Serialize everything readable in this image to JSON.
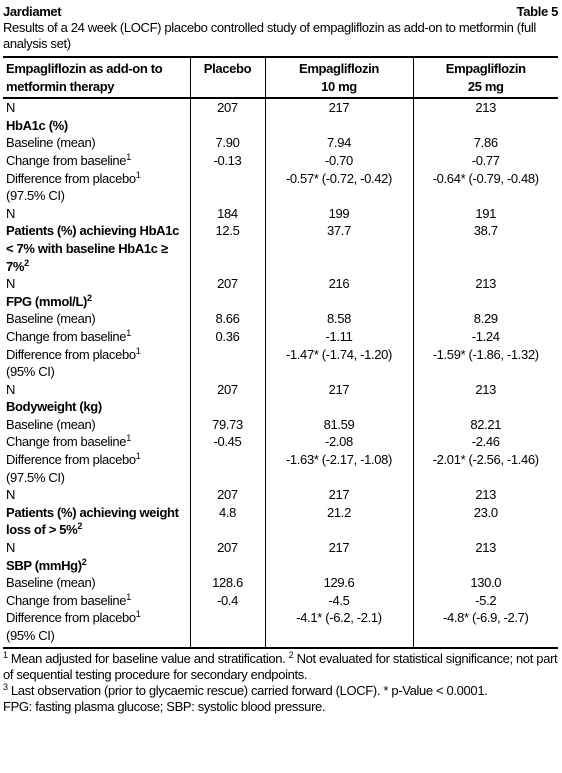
{
  "header": {
    "brand": "Jardiamet",
    "table_no": "Table 5",
    "caption": "Results of a 24 week (LOCF) placebo controlled study of empagliflozin as add-on to metformin (full analysis set)"
  },
  "table": {
    "columns": [
      [
        "Empagliflozin as add-on to metformin therapy"
      ],
      [
        "Placebo"
      ],
      [
        "Empagliflozin",
        "10 mg"
      ],
      [
        "Empagliflozin",
        "25 mg"
      ]
    ],
    "rows": [
      {
        "label": "N",
        "cells": [
          "207",
          "217",
          "213"
        ]
      },
      {
        "label": "HbA1c (%)",
        "bold": true
      },
      {
        "label": "Baseline (mean)",
        "cells": [
          "7.90",
          "7.94",
          "7.86"
        ]
      },
      {
        "label": "Change from baseline",
        "sup": "1",
        "cells": [
          "-0.13",
          "-0.70",
          "-0.77"
        ]
      },
      {
        "label": "Difference from placebo",
        "sup": "1",
        "label2": "(97.5% CI)",
        "cells": [
          null,
          "-0.57* (-0.72, -0.42)",
          "-0.64* (-0.79, -0.48)"
        ]
      },
      {
        "label": "N",
        "cells": [
          "184",
          "199",
          "191"
        ]
      },
      {
        "label": "Patients (%) achieving HbA1c < 7% with baseline HbA1c ≥ 7%",
        "sup": "2",
        "bold": true,
        "cells": [
          "12.5",
          "37.7",
          "38.7"
        ]
      },
      {
        "label": "N",
        "cells": [
          "207",
          "216",
          "213"
        ]
      },
      {
        "label": "FPG (mmol/L)",
        "sup": "2",
        "bold": true
      },
      {
        "label": "Baseline (mean)",
        "cells": [
          "8.66",
          "8.58",
          "8.29"
        ]
      },
      {
        "label": "Change from baseline",
        "sup": "1",
        "cells": [
          "0.36",
          "-1.11",
          "-1.24"
        ]
      },
      {
        "label": "Difference from placebo",
        "sup": "1",
        "label2": "(95% CI)",
        "cells": [
          null,
          "-1.47* (-1.74, -1.20)",
          "-1.59* (-1.86, -1.32)"
        ]
      },
      {
        "label": "N",
        "cells": [
          "207",
          "217",
          "213"
        ]
      },
      {
        "label": "Bodyweight (kg)",
        "bold": true
      },
      {
        "label": "Baseline (mean)",
        "cells": [
          "79.73",
          "81.59",
          "82.21"
        ]
      },
      {
        "label": "Change from baseline",
        "sup": "1",
        "cells": [
          "-0.45",
          "-2.08",
          "-2.46"
        ]
      },
      {
        "label": "Difference from placebo",
        "sup": "1",
        "label2": "(97.5% CI)",
        "cells": [
          null,
          "-1.63* (-2.17, -1.08)",
          "-2.01* (-2.56, -1.46)"
        ]
      },
      {
        "label": "N",
        "cells": [
          "207",
          "217",
          "213"
        ]
      },
      {
        "label": "Patients (%) achieving weight loss of > 5%",
        "sup": "2",
        "bold": true,
        "cells": [
          "4.8",
          "21.2",
          "23.0"
        ]
      },
      {
        "label": "N",
        "cells": [
          "207",
          "217",
          "213"
        ]
      },
      {
        "label": "SBP (mmHg)",
        "sup": "2",
        "bold": true
      },
      {
        "label": "Baseline (mean)",
        "cells": [
          "128.6",
          "129.6",
          "130.0"
        ]
      },
      {
        "label": "Change from baseline",
        "sup": "1",
        "cells": [
          "-0.4",
          "-4.5",
          "-5.2"
        ]
      },
      {
        "label": "Difference from placebo",
        "sup": "1",
        "label2": "(95% CI)",
        "cells": [
          null,
          "-4.1* (-6.2, -2.1)",
          "-4.8* (-6.9, -2.7)"
        ]
      }
    ]
  },
  "footnotes": [
    [
      {
        "sup": "1",
        "text": " Mean adjusted for baseline value and stratification. "
      },
      {
        "sup": "2",
        "text": " Not evaluated for statistical significance; not part of sequential testing procedure for secondary endpoints."
      }
    ],
    [
      {
        "sup": "3",
        "text": " Last observation (prior to glycaemic rescue) carried forward (LOCF). * p-Value < 0.0001."
      }
    ],
    [
      {
        "text": "FPG: fasting plasma glucose; SBP: systolic blood pressure."
      }
    ]
  ]
}
